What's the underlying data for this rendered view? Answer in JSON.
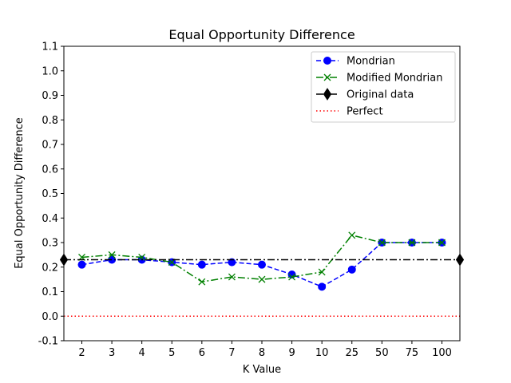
{
  "chart_data": {
    "type": "line",
    "title": "Equal Opportunity Difference",
    "xlabel": "K Value",
    "ylabel": "Equal Opportunity Difference",
    "categories": [
      "2",
      "3",
      "4",
      "5",
      "6",
      "7",
      "8",
      "9",
      "10",
      "25",
      "50",
      "75",
      "100"
    ],
    "ylim": [
      -0.1,
      1.1
    ],
    "yticks": [
      "-0.1",
      "0.0",
      "0.1",
      "0.2",
      "0.3",
      "0.4",
      "0.5",
      "0.6",
      "0.7",
      "0.8",
      "0.9",
      "1.0",
      "1.1"
    ],
    "grid": false,
    "legend_position": "top-right",
    "series": [
      {
        "name": "Mondrian",
        "color": "#0000ff",
        "marker": "circle",
        "linestyle": "dashed",
        "values": [
          0.21,
          0.23,
          0.23,
          0.22,
          0.21,
          0.22,
          0.21,
          0.17,
          0.12,
          0.19,
          0.3,
          0.3,
          0.3
        ]
      },
      {
        "name": "Modified Mondrian",
        "color": "#008000",
        "marker": "x",
        "linestyle": "dashdot",
        "values": [
          0.24,
          0.25,
          0.24,
          0.22,
          0.14,
          0.16,
          0.15,
          0.16,
          0.18,
          0.33,
          0.3,
          0.3,
          0.3
        ]
      }
    ],
    "reference_lines": [
      {
        "name": "Original data",
        "color": "#000000",
        "marker": "diamond",
        "linestyle": "dashdot",
        "value": 0.23
      },
      {
        "name": "Perfect",
        "color": "#ff0000",
        "linestyle": "dotted",
        "value": 0.0
      }
    ]
  }
}
